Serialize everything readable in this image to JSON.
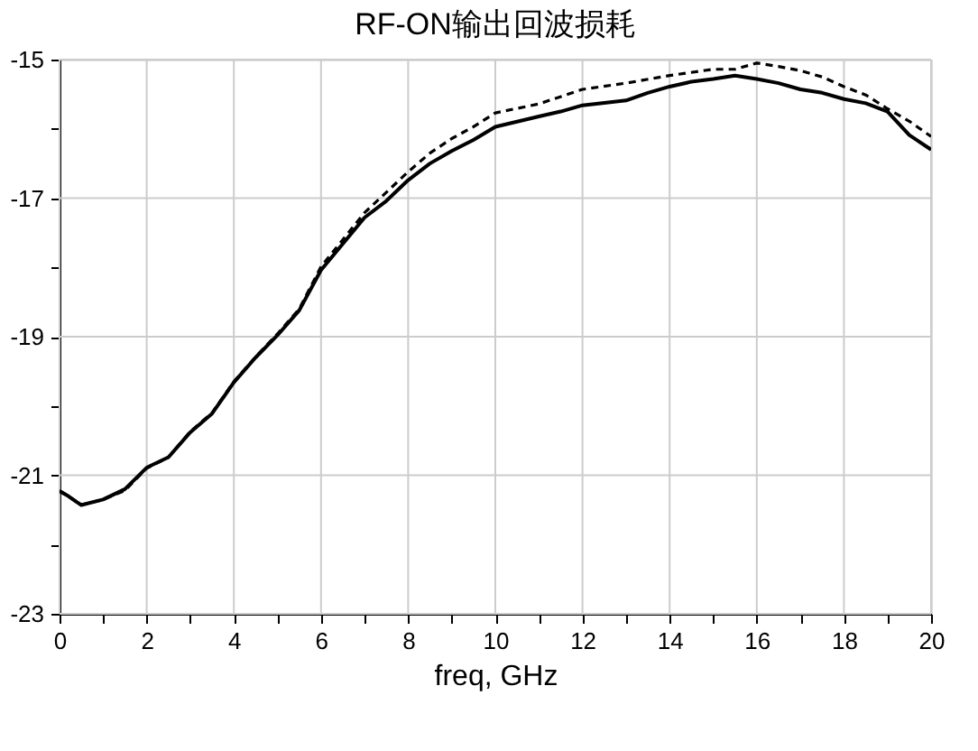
{
  "chart_data": {
    "type": "line",
    "title": "RF-ON输出回波损耗",
    "xlabel": "freq, GHz",
    "xlim": [
      0,
      20
    ],
    "ylim": [
      -23,
      -15
    ],
    "xticks": [
      0,
      {
        "value": 1,
        "label": null
      },
      2,
      {
        "value": 3,
        "label": null
      },
      4,
      {
        "value": 5,
        "label": null
      },
      6,
      {
        "value": 7,
        "label": null
      },
      8,
      {
        "value": 9,
        "label": null
      },
      10,
      {
        "value": 11,
        "label": null
      },
      12,
      {
        "value": 13,
        "label": null
      },
      14,
      {
        "value": 15,
        "label": null
      },
      16,
      {
        "value": 17,
        "label": null
      },
      18,
      {
        "value": 19,
        "label": null
      },
      20
    ],
    "yticks": [
      -23,
      {
        "value": -22,
        "label": null
      },
      -21,
      {
        "value": -20,
        "label": null
      },
      -19,
      {
        "value": -18,
        "label": null
      },
      -17,
      {
        "value": -16,
        "label": null
      },
      -15
    ],
    "grid": true,
    "marker": "none",
    "series": [
      {
        "color": "#000000",
        "line_style": "solid",
        "x": [
          0,
          0.2,
          0.4,
          0.5,
          1,
          1.5,
          2,
          2.5,
          3,
          3.5,
          4,
          4.5,
          5,
          5.5,
          6,
          7,
          7.5,
          8,
          8.5,
          9,
          9.5,
          10,
          11,
          11.5,
          12,
          13,
          13.5,
          14,
          14.5,
          15,
          15.5,
          16,
          16.5,
          17,
          17.5,
          18,
          18.5,
          19,
          19.5,
          20
        ],
        "values": [
          -21.23,
          -21.3,
          -21.39,
          -21.43,
          -21.35,
          -21.2,
          -20.89,
          -20.74,
          -20.38,
          -20.11,
          -19.66,
          -19.3,
          -18.98,
          -18.62,
          -18.04,
          -17.28,
          -17.04,
          -16.74,
          -16.5,
          -16.32,
          -16.16,
          -15.97,
          -15.82,
          -15.75,
          -15.66,
          -15.59,
          -15.48,
          -15.39,
          -15.32,
          -15.28,
          -15.23,
          -15.28,
          -15.34,
          -15.43,
          -15.48,
          -15.57,
          -15.63,
          -15.75,
          -16.09,
          -16.3
        ]
      },
      {
        "color": "#000000",
        "line_style": "dashed",
        "x": [
          0,
          0.2,
          0.4,
          0.5,
          1,
          1.5,
          2,
          2.5,
          3,
          3.5,
          4,
          4.5,
          5,
          5.5,
          6,
          7,
          8,
          8.5,
          9,
          9.5,
          10,
          11,
          12,
          13,
          14,
          15,
          15.5,
          16,
          16.5,
          17,
          17.5,
          18,
          18.5,
          19,
          19.5,
          20
        ],
        "values": [
          -21.22,
          -21.3,
          -21.39,
          -21.43,
          -21.35,
          -21.22,
          -20.9,
          -20.74,
          -20.37,
          -20.1,
          -19.65,
          -19.29,
          -18.96,
          -18.6,
          -17.99,
          -17.21,
          -16.62,
          -16.35,
          -16.14,
          -15.97,
          -15.77,
          -15.64,
          -15.43,
          -15.34,
          -15.23,
          -15.14,
          -15.14,
          -15.05,
          -15.1,
          -15.16,
          -15.25,
          -15.39,
          -15.51,
          -15.71,
          -15.89,
          -16.11
        ]
      }
    ]
  }
}
